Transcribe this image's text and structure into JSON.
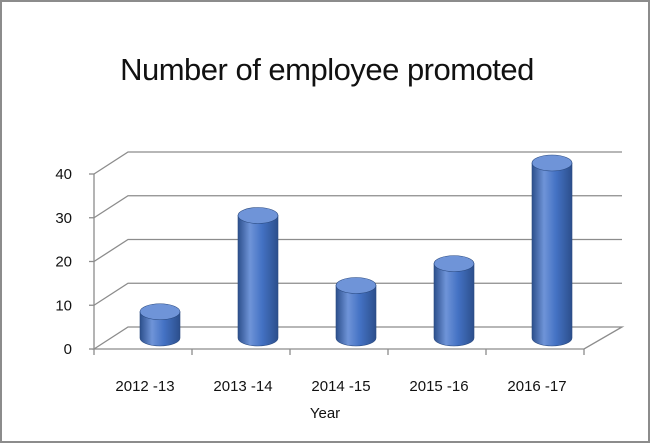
{
  "chart_data": {
    "type": "bar",
    "title": "Number of employee promoted",
    "xlabel": "Year",
    "ylabel": "",
    "categories": [
      "2012 -13",
      "2013 -14",
      "2014 -15",
      "2015 -16",
      "2016 -17"
    ],
    "values": [
      6,
      28,
      12,
      17,
      40
    ],
    "ylim": [
      0,
      40
    ],
    "yticks": [
      0,
      10,
      20,
      30,
      40
    ],
    "grid": true,
    "legend": "none",
    "style": "3d-cylinder",
    "colors": {
      "bar": "#4472c4",
      "bar_dark": "#2c4f8c",
      "bar_light": "#6f94d8",
      "grid": "#8c8c8c"
    }
  }
}
